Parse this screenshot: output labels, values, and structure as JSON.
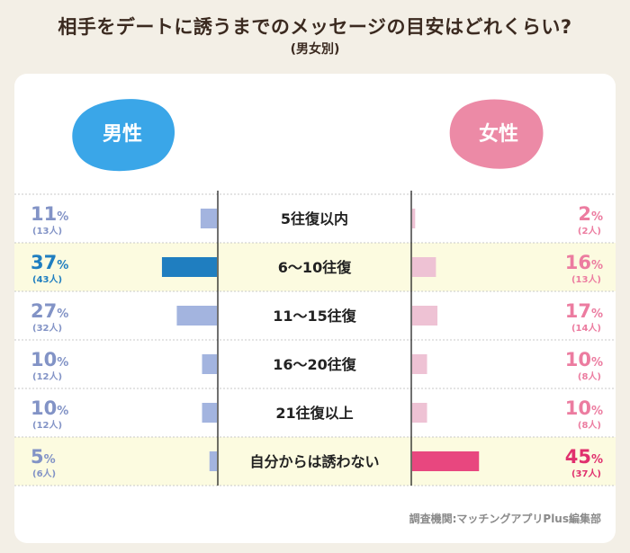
{
  "title": "相手をデートに誘うまでのメッセージの目安はどれくらい?",
  "subtitle": "(男女別)",
  "source": "調査機関:マッチングアプリPlus編集部",
  "chart_data": {
    "type": "bar",
    "title": "相手をデートに誘うまでのメッセージの目安はどれくらい?",
    "subtitle": "(男女別)",
    "categories": [
      "5往復以内",
      "6～10往復",
      "11～15往復",
      "16～20往復",
      "21往復以上",
      "自分からは誘わない"
    ],
    "series": [
      {
        "name": "男性",
        "values": [
          11,
          37,
          27,
          10,
          10,
          5
        ],
        "counts": [
          "(13人)",
          "(43人)",
          "(32人)",
          "(12人)",
          "(12人)",
          "(6人)"
        ],
        "highlight_index": 1
      },
      {
        "name": "女性",
        "values": [
          2,
          16,
          17,
          10,
          10,
          45
        ],
        "counts": [
          "(2人)",
          "(13人)",
          "(14人)",
          "(8人)",
          "(8人)",
          "(37人)"
        ],
        "highlight_index": 5
      }
    ],
    "unit": "%",
    "highlight_rows": [
      1,
      5
    ]
  },
  "colors": {
    "male_accent": "#3aa6e8",
    "male_bar": "#a3b4df",
    "male_bar_highlight": "#1f7ec0",
    "male_text": "#8293c6",
    "male_text_highlight": "#1f7ec0",
    "female_accent": "#ec8aa6",
    "female_bar": "#eec2d4",
    "female_bar_highlight": "#e8477f",
    "female_text": "#ec7ca0",
    "female_text_highlight": "#e0306e",
    "highlight_row_bg": "#fcfbe0"
  }
}
